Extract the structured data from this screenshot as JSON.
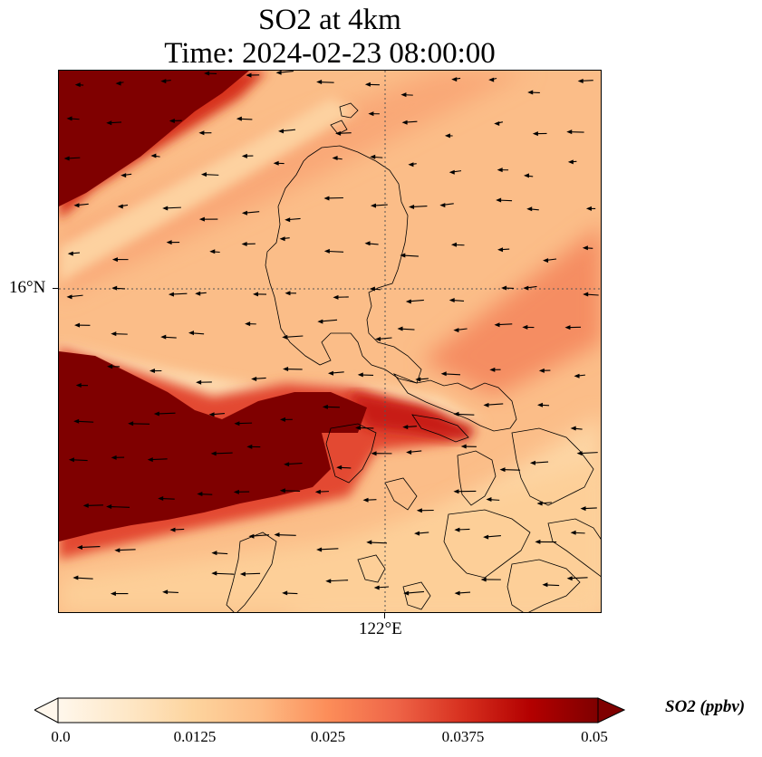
{
  "title": {
    "line1": "SO2 at 4km",
    "line2": "Time: 2024-02-23 08:00:00"
  },
  "axes": {
    "lat_tick_label": "16°N",
    "lon_tick_label": "122°E"
  },
  "colorbar": {
    "label": "SO2 (ppbv)",
    "colormap": "OrRd",
    "min": 0.0,
    "max": 0.05,
    "extend": "both",
    "ticks": [
      "0.0",
      "0.0125",
      "0.025",
      "0.0375",
      "0.05"
    ],
    "colors": [
      "#fff7ec",
      "#fee8c8",
      "#fdd49e",
      "#fdbb84",
      "#fc8d59",
      "#ef6548",
      "#d7301f",
      "#b30000",
      "#7f0000"
    ]
  },
  "map": {
    "features": [
      "SO2 concentration field",
      "wind vectors",
      "coastlines",
      "16°N / 122°E gridlines"
    ],
    "wind_direction": "westward"
  }
}
